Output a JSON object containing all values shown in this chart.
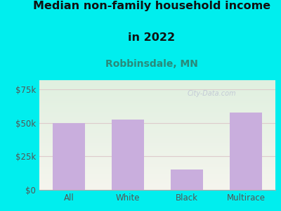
{
  "categories": [
    "All",
    "White",
    "Black",
    "Multirace"
  ],
  "values": [
    50000,
    52500,
    15000,
    58000
  ],
  "bar_color": "#c9aedd",
  "title_line1": "Median non-family household income",
  "title_line2": "in 2022",
  "subtitle": "Robbinsdale, MN",
  "yticks": [
    0,
    25000,
    50000,
    75000
  ],
  "ytick_labels": [
    "$0",
    "$25k",
    "$50k",
    "$75k"
  ],
  "ylim": [
    0,
    82000
  ],
  "bg_outer": "#00EEEE",
  "bg_plot_topleft": "#e0f0e0",
  "bg_plot_bottomright": "#f8f8f4",
  "title_fontsize": 11.5,
  "subtitle_fontsize": 10,
  "subtitle_color": "#2a8a7a",
  "title_color": "#111111",
  "tick_color": "#555555",
  "gridline_color": "#ddcccc",
  "watermark": "City-Data.com"
}
